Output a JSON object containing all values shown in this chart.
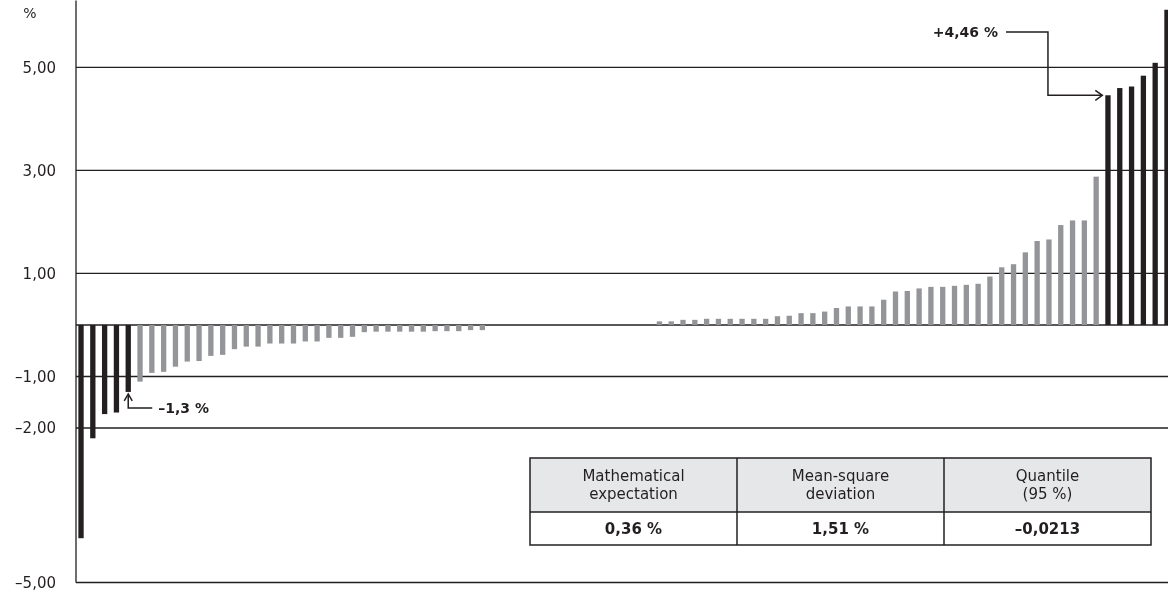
{
  "chart_data": [
    {
      "type": "bar",
      "ylabel": "%",
      "categories": [
        null,
        null,
        null,
        null,
        null,
        null,
        null,
        null,
        null,
        null,
        null,
        null,
        null,
        null,
        null,
        null,
        null,
        null,
        null,
        null,
        null,
        null,
        null,
        null,
        null,
        null,
        null,
        null,
        null,
        null,
        null,
        null,
        null,
        null,
        null,
        null,
        null,
        null,
        null,
        null,
        null,
        null,
        null,
        null,
        null,
        null,
        null,
        null,
        null,
        null,
        null,
        null,
        null,
        null,
        null,
        null,
        null,
        null,
        null,
        null,
        null,
        null,
        null,
        null,
        null,
        null,
        null,
        null,
        null,
        null,
        null,
        null,
        null,
        null,
        null,
        null,
        null,
        null,
        null,
        null,
        null,
        null,
        null,
        null,
        null,
        null,
        null,
        null,
        null,
        null,
        null,
        null,
        null
      ],
      "values": [
        -4.14,
        -2.2,
        -1.73,
        -1.7,
        -1.3,
        -1.1,
        -0.93,
        -0.91,
        -0.81,
        -0.71,
        -0.7,
        -0.6,
        -0.58,
        -0.47,
        -0.42,
        -0.42,
        -0.36,
        -0.36,
        -0.36,
        -0.32,
        -0.32,
        -0.25,
        -0.25,
        -0.23,
        -0.14,
        -0.13,
        -0.13,
        -0.13,
        -0.13,
        -0.13,
        -0.12,
        -0.12,
        -0.12,
        -0.1,
        -0.1,
        null,
        null,
        null,
        null,
        null,
        null,
        null,
        null,
        null,
        null,
        null,
        null,
        null,
        null,
        0.07,
        0.07,
        0.1,
        0.1,
        0.12,
        0.12,
        0.12,
        0.12,
        0.12,
        0.12,
        0.17,
        0.18,
        0.23,
        0.23,
        0.26,
        0.33,
        0.36,
        0.36,
        0.36,
        0.49,
        0.65,
        0.66,
        0.71,
        0.74,
        0.74,
        0.76,
        0.78,
        0.8,
        0.94,
        1.12,
        1.18,
        1.41,
        1.63,
        1.66,
        1.94,
        2.03,
        2.03,
        2.88,
        4.46,
        4.6,
        4.63,
        4.84,
        5.09,
        6.12
      ],
      "colors": [
        "#231f20",
        "#231f20",
        "#231f20",
        "#231f20",
        "#231f20",
        "#939598",
        "#939598",
        "#939598",
        "#939598",
        "#939598",
        "#939598",
        "#939598",
        "#939598",
        "#939598",
        "#939598",
        "#939598",
        "#939598",
        "#939598",
        "#939598",
        "#939598",
        "#939598",
        "#939598",
        "#939598",
        "#939598",
        "#939598",
        "#939598",
        "#939598",
        "#939598",
        "#939598",
        "#939598",
        "#939598",
        "#939598",
        "#939598",
        "#939598",
        "#939598",
        null,
        null,
        null,
        null,
        null,
        null,
        null,
        null,
        null,
        null,
        null,
        null,
        null,
        null,
        "#939598",
        "#939598",
        "#939598",
        "#939598",
        "#939598",
        "#939598",
        "#939598",
        "#939598",
        "#939598",
        "#939598",
        "#939598",
        "#939598",
        "#939598",
        "#939598",
        "#939598",
        "#939598",
        "#939598",
        "#939598",
        "#939598",
        "#939598",
        "#939598",
        "#939598",
        "#939598",
        "#939598",
        "#939598",
        "#939598",
        "#939598",
        "#939598",
        "#939598",
        "#939598",
        "#939598",
        "#939598",
        "#939598",
        "#939598",
        "#939598",
        "#939598",
        "#939598",
        "#939598",
        "#231f20",
        "#231f20",
        "#231f20",
        "#231f20",
        "#231f20",
        "#231f20"
      ],
      "value_labels": [
        null,
        null,
        null,
        null,
        "–1,3 %",
        null,
        null,
        null,
        null,
        null,
        null,
        null,
        null,
        null,
        null,
        null,
        null,
        null,
        null,
        null,
        null,
        null,
        null,
        null,
        null,
        null,
        null,
        null,
        null,
        null,
        null,
        null,
        null,
        null,
        null,
        null,
        null,
        null,
        null,
        null,
        null,
        null,
        null,
        null,
        null,
        null,
        null,
        null,
        null,
        null,
        null,
        null,
        null,
        null,
        null,
        null,
        null,
        null,
        null,
        null,
        null,
        null,
        null,
        null,
        null,
        null,
        null,
        null,
        null,
        null,
        null,
        null,
        null,
        null,
        null,
        null,
        null,
        null,
        null,
        null,
        null,
        null,
        null,
        null,
        null,
        null,
        null,
        "+4,46 %",
        null,
        null,
        null,
        null,
        null
      ],
      "ylim": [
        -5,
        6.3
      ],
      "yticks": [
        {
          "value": -5,
          "label": "–5,00"
        },
        {
          "value": -2,
          "label": "–2,00"
        },
        {
          "value": -1,
          "label": "–1,00"
        },
        {
          "value": 0,
          "label": null
        },
        {
          "value": 1,
          "label": "1,00"
        },
        {
          "value": 3,
          "label": "3,00"
        },
        {
          "value": 5,
          "label": "5,00"
        }
      ],
      "grid": "y"
    },
    {
      "type": "other",
      "categories": [
        "Mathematical expectation",
        "Mean-square deviation",
        "Quantile (95 %)"
      ],
      "value_labels": [
        "0,36 %",
        "1,51 %",
        "–0,0213"
      ]
    }
  ]
}
